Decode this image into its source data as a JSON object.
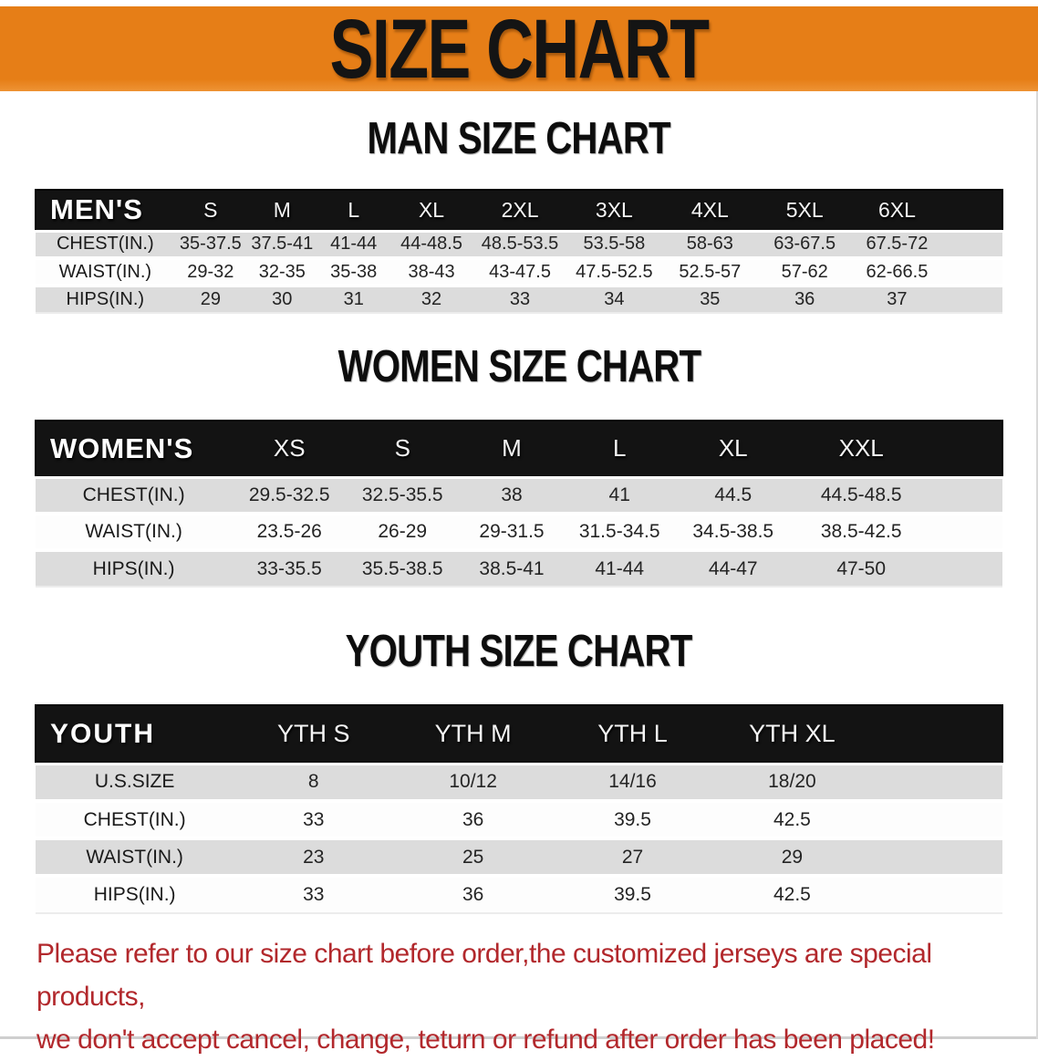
{
  "banner": {
    "title": "SIZE CHART",
    "bg_color": "#E67E17",
    "text_color": "#141414"
  },
  "sections": [
    {
      "title": "MAN SIZE CHART",
      "table": {
        "group_label": "MEN'S",
        "columns": [
          "S",
          "M",
          "L",
          "XL",
          "2XL",
          "3XL",
          "4XL",
          "5XL",
          "6XL"
        ],
        "rows": [
          {
            "label": "CHEST(IN.)",
            "values": [
              "35-37.5",
              "37.5-41",
              "41-44",
              "44-48.5",
              "48.5-53.5",
              "53.5-58",
              "58-63",
              "63-67.5",
              "67.5-72"
            ]
          },
          {
            "label": "WAIST(IN.)",
            "values": [
              "29-32",
              "32-35",
              "35-38",
              "38-43",
              "43-47.5",
              "47.5-52.5",
              "52.5-57",
              "57-62",
              "62-66.5"
            ]
          },
          {
            "label": "HIPS(IN.)",
            "values": [
              "29",
              "30",
              "31",
              "32",
              "33",
              "34",
              "35",
              "36",
              "37"
            ]
          }
        ]
      }
    },
    {
      "title": "WOMEN SIZE CHART",
      "table": {
        "group_label": "WOMEN'S",
        "columns": [
          "XS",
          "S",
          "M",
          "L",
          "XL",
          "XXL"
        ],
        "rows": [
          {
            "label": "CHEST(IN.)",
            "values": [
              "29.5-32.5",
              "32.5-35.5",
              "38",
              "41",
              "44.5",
              "44.5-48.5"
            ]
          },
          {
            "label": "WAIST(IN.)",
            "values": [
              "23.5-26",
              "26-29",
              "29-31.5",
              "31.5-34.5",
              "34.5-38.5",
              "38.5-42.5"
            ]
          },
          {
            "label": "HIPS(IN.)",
            "values": [
              "33-35.5",
              "35.5-38.5",
              "38.5-41",
              "41-44",
              "44-47",
              "47-50"
            ]
          }
        ]
      }
    },
    {
      "title": "YOUTH SIZE CHART",
      "table": {
        "group_label": "YOUTH",
        "columns": [
          "YTH S",
          "YTH M",
          "YTH L",
          "YTH XL"
        ],
        "rows": [
          {
            "label": "U.S.SIZE",
            "values": [
              "8",
              "10/12",
              "14/16",
              "18/20"
            ]
          },
          {
            "label": "CHEST(IN.)",
            "values": [
              "33",
              "36",
              "39.5",
              "42.5"
            ]
          },
          {
            "label": "WAIST(IN.)",
            "values": [
              "23",
              "25",
              "27",
              "29"
            ]
          },
          {
            "label": "HIPS(IN.)",
            "values": [
              "33",
              "36",
              "39.5",
              "42.5"
            ]
          }
        ]
      }
    }
  ],
  "disclaimer": {
    "lines": [
      "Please refer to our size chart before order,the customized jerseys are special products,",
      "we don't accept cancel, change, teturn or refund after order has been placed!"
    ],
    "color": "#B2282C"
  },
  "colors": {
    "header_band": "#131313",
    "stripe_gray": "#DCDCDC"
  }
}
